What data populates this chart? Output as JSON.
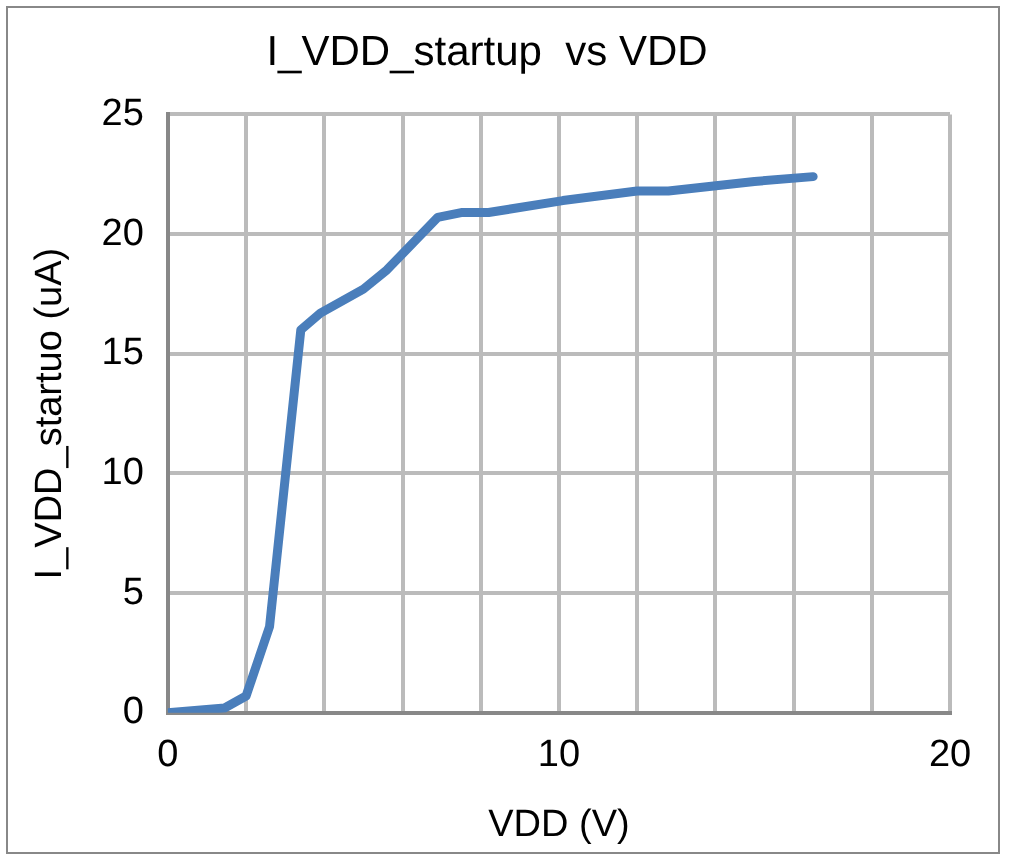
{
  "chart_data": {
    "type": "line",
    "title": "I_VDD_startup  vs VDD",
    "xlabel": "VDD (V)",
    "ylabel": "I_VDD_startuo (uA)",
    "x": [
      0,
      1.45,
      2.0,
      2.6,
      3.4,
      3.9,
      5.0,
      5.6,
      6.9,
      7.5,
      8.2,
      10.1,
      12.0,
      12.8,
      15.0,
      16.5
    ],
    "series": [
      {
        "color": "#4a7ebb",
        "values": [
          0,
          0.2,
          0.7,
          3.6,
          16.0,
          16.7,
          17.7,
          18.5,
          20.7,
          20.9,
          20.9,
          21.4,
          21.8,
          21.8,
          22.2,
          22.4
        ]
      }
    ],
    "xlim": [
      0,
      20
    ],
    "xticks": [
      0,
      {
        "value": 2,
        "label": null
      },
      {
        "value": 4,
        "label": null
      },
      {
        "value": 6,
        "label": null
      },
      {
        "value": 8,
        "label": null
      },
      10,
      {
        "value": 12,
        "label": null
      },
      {
        "value": 14,
        "label": null
      },
      {
        "value": 16,
        "label": null
      },
      {
        "value": 18,
        "label": null
      },
      20
    ],
    "ylim": [
      0,
      25
    ],
    "yticks": [
      0,
      5,
      10,
      15,
      20,
      25
    ],
    "grid": true,
    "legend": false,
    "marker": "none",
    "line_style": "solid"
  }
}
